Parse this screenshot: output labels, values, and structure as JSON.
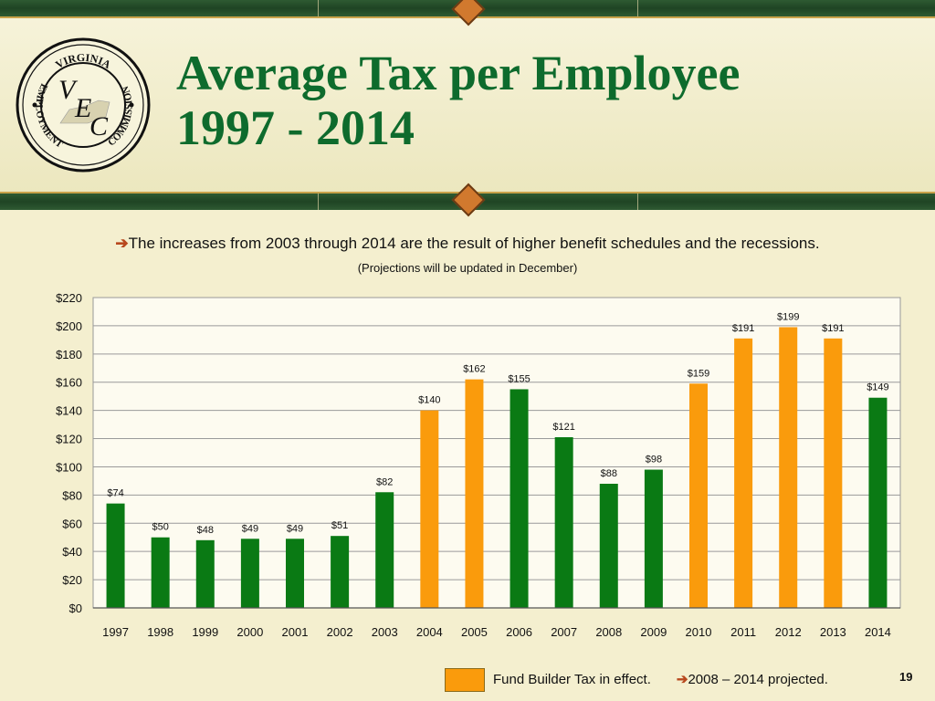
{
  "slide": {
    "title_line1": "Average Tax per Employee",
    "title_line2": "1997 - 2014",
    "subtitle": "The increases from 2003 through 2014 are the result of higher benefit schedules and the recessions.",
    "subtitle_arrow": "➔",
    "note": "(Projections will be updated in December)",
    "page_number": "19"
  },
  "logo": {
    "top_text": "VIRGINIA",
    "left_text": "EMPLOYMENT",
    "right_text": "COMMISSION",
    "letters": [
      "V",
      "E",
      "C"
    ]
  },
  "footer": {
    "legend_label": "Fund Builder Tax in effect.",
    "arrow": "➔",
    "projected_label": "2008 – 2014 projected."
  },
  "colors": {
    "green_bar": "#0a7a14",
    "orange_bar": "#fa9b0c",
    "title": "#0e6b2d"
  },
  "chart_data": {
    "type": "bar",
    "categories": [
      "1997",
      "1998",
      "1999",
      "2000",
      "2001",
      "2002",
      "2003",
      "2004",
      "2005",
      "2006",
      "2007",
      "2008",
      "2009",
      "2010",
      "2011",
      "2012",
      "2013",
      "2014"
    ],
    "values": [
      74,
      50,
      48,
      49,
      49,
      51,
      82,
      140,
      162,
      155,
      121,
      88,
      98,
      159,
      191,
      199,
      191,
      149
    ],
    "data_labels": [
      "$74",
      "$50",
      "$48",
      "$49",
      "$49",
      "$51",
      "$82",
      "$140",
      "$162",
      "$155",
      "$121",
      "$88",
      "$98",
      "$159",
      "$191",
      "$199",
      "$191",
      "$149"
    ],
    "fund_builder": [
      false,
      false,
      false,
      false,
      false,
      false,
      false,
      true,
      true,
      false,
      false,
      false,
      false,
      true,
      true,
      true,
      true,
      false
    ],
    "ylim": [
      0,
      220
    ],
    "yticks": [
      0,
      20,
      40,
      60,
      80,
      100,
      120,
      140,
      160,
      180,
      200,
      220
    ],
    "ytick_labels": [
      "$0",
      "$20",
      "$40",
      "$60",
      "$80",
      "$100",
      "$120",
      "$140",
      "$160",
      "$180",
      "$200",
      "$220"
    ],
    "grid": true,
    "xlabel": "",
    "ylabel": ""
  }
}
